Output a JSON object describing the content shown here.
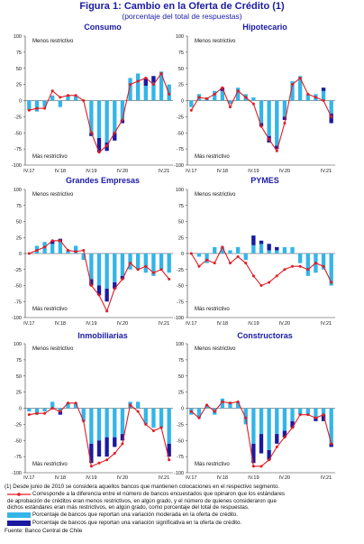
{
  "figure": {
    "title": "Figura 1: Cambio en la Oferta de Crédito (1)",
    "subtitle": "(porcentaje del total de respuestas)"
  },
  "colors": {
    "moderate": "#33b5e8",
    "significant": "#1a1aa0",
    "line": "#e31b23",
    "title": "#1a1aa6"
  },
  "notes": {
    "footnote": "(1) Desde junio de 2010 se considera aquellos bancos que mantienen colocaciones en el respectivo segmento.",
    "line_legend_1": "Corresponde a la diferencia entre el número de bancos encuestados que opinaron que los estándares",
    "line_legend_2": "de aprobación de créditos eran menos restrictivos, en algún grado, y el número de quienes consideraron que",
    "line_legend_3": "dichos estándares eran más restrictivos, en algún grado, como porcentaje del total de respuestas.",
    "moderate_legend": "Porcentaje de bancos que reportan una variación moderada en la oferta de crédito.",
    "significant_legend": "Porcentaje de bancos que reportan una variación significativa en la oferta de crédito.",
    "source": "Fuente: Banco Central de Chile"
  },
  "chart_data": [
    {
      "type": "bar",
      "title": "Consumo",
      "label_top": "Menos restrictivo",
      "label_bottom": "Más restrictivo",
      "ylim": [
        -100,
        100
      ],
      "yticks": [
        "100",
        "75",
        "50",
        "25",
        "0",
        "-25",
        "-50",
        "-75",
        "-100"
      ],
      "xticks": [
        "IV.17",
        "IV.18",
        "IV.19",
        "IV.20",
        "IV.21"
      ],
      "series": [
        {
          "name": "Porcentaje de bancos que reportan una variación moderada en la oferta de crédito.",
          "values": [
            -15,
            -17,
            -10,
            8,
            -10,
            8,
            7,
            0,
            -50,
            -58,
            -65,
            -50,
            -30,
            35,
            42,
            35,
            38,
            45,
            25
          ]
        },
        {
          "name": "Porcentaje de bancos que reportan una variación significativa en la oferta de crédito.",
          "values": [
            0,
            0,
            0,
            0,
            0,
            0,
            0,
            0,
            -5,
            -22,
            -13,
            -12,
            -5,
            0,
            0,
            -12,
            -10,
            0,
            0
          ]
        },
        {
          "name": "Corresponde a la diferencia entre el número de bancos encuestados que opinaron que los estándares de aprobación de créditos eran menos restrictivos, en algún grado, y el número de quienes consideraron que dichos estándares eran más restrictivos, en algún grado, como porcentaje del total de respuestas.",
          "values": [
            -15,
            -12,
            -12,
            15,
            5,
            8,
            8,
            0,
            -50,
            -80,
            -70,
            -50,
            -30,
            25,
            30,
            35,
            25,
            42,
            10
          ]
        }
      ]
    },
    {
      "type": "bar",
      "title": "Hipotecario",
      "label_top": "Menos restrictivo",
      "label_bottom": "Más restrictivo",
      "ylim": [
        -100,
        100
      ],
      "yticks": [
        "100",
        "75",
        "50",
        "25",
        "0",
        "-25",
        "-50",
        "-75",
        "-100"
      ],
      "xticks": [
        "IV.17",
        "IV.18",
        "IV.19",
        "IV.20",
        "IV.21"
      ],
      "series": [
        {
          "name": "Porcentaje de bancos que reportan una variación moderada en la oferta de crédito.",
          "values": [
            -10,
            10,
            5,
            15,
            20,
            -5,
            20,
            10,
            5,
            -35,
            -55,
            -70,
            -25,
            30,
            38,
            10,
            10,
            20,
            -20
          ]
        },
        {
          "name": "Porcentaje de bancos que reportan una variación significativa en la oferta de crédito.",
          "values": [
            0,
            0,
            0,
            0,
            -5,
            0,
            0,
            0,
            0,
            -5,
            -10,
            -5,
            -5,
            0,
            0,
            0,
            0,
            -5,
            -15
          ]
        },
        {
          "name": "Corresponde a la diferencia entre el número de bancos encuestados que opinaron que los estándares de aprobación de créditos eran menos restrictivos, en algún grado, y el número de quienes consideraron que dichos estándares eran más restrictivos, en algún grado, como porcentaje del total de respuestas.",
          "values": [
            -15,
            5,
            3,
            10,
            20,
            -10,
            15,
            5,
            -5,
            -40,
            -60,
            -78,
            -35,
            25,
            35,
            10,
            5,
            0,
            -25
          ]
        }
      ]
    },
    {
      "type": "bar",
      "title": "Grandes Empresas",
      "label_top": "Menos restrictivo",
      "label_bottom": "Más restrictivo",
      "ylim": [
        -100,
        100
      ],
      "yticks": [
        "100",
        "75",
        "50",
        "25",
        "0",
        "-25",
        "-50",
        "-75",
        "-100"
      ],
      "xticks": [
        "IV.17",
        "IV.18",
        "IV.19",
        "IV.20",
        "IV.21"
      ],
      "series": [
        {
          "name": "Porcentaje de bancos que reportan una variación moderada en la oferta de crédito.",
          "values": [
            0,
            12,
            18,
            15,
            18,
            5,
            12,
            -10,
            -40,
            -50,
            -55,
            -45,
            -35,
            -25,
            -25,
            -30,
            -35,
            -25,
            -30
          ]
        },
        {
          "name": "Porcentaje de bancos que reportan una variación significativa en la oferta de crédito.",
          "values": [
            0,
            0,
            0,
            5,
            5,
            0,
            0,
            0,
            -10,
            -15,
            -20,
            -10,
            -5,
            0,
            0,
            0,
            0,
            0,
            0
          ]
        },
        {
          "name": "Corresponde a la diferencia entre el número de bancos encuestados que opinaron que los estándares de aprobación de créditos eran menos restrictivos, en algún grado, y el número de quienes consideraron que dichos estándares eran más restrictivos, en algún grado, como porcentaje del total de respuestas.",
          "values": [
            0,
            5,
            10,
            20,
            20,
            5,
            3,
            5,
            -50,
            -65,
            -90,
            -55,
            -40,
            -15,
            -25,
            -20,
            -30,
            -25,
            -40
          ]
        }
      ]
    },
    {
      "type": "bar",
      "title": "PYMES",
      "label_top": "Menos restrictivo",
      "label_bottom": "Más restrictivo",
      "ylim": [
        -100,
        100
      ],
      "yticks": [
        "100",
        "75",
        "50",
        "25",
        "0",
        "-25",
        "-50",
        "-75",
        "-100"
      ],
      "xticks": [
        "IV.17",
        "IV.18",
        "IV.19",
        "IV.20",
        "IV.21"
      ],
      "series": [
        {
          "name": "Porcentaje de bancos que reportan una variación moderada en la oferta de crédito.",
          "values": [
            0,
            -5,
            -15,
            10,
            10,
            5,
            10,
            -10,
            28,
            20,
            15,
            10,
            10,
            10,
            -15,
            -35,
            -30,
            -25,
            -50
          ]
        },
        {
          "name": "Porcentaje de bancos que reportan una variación significativa en la oferta de crédito.",
          "values": [
            0,
            0,
            0,
            0,
            0,
            0,
            0,
            0,
            -15,
            -5,
            -10,
            -5,
            0,
            0,
            0,
            0,
            0,
            0,
            0
          ]
        },
        {
          "name": "Corresponde a la diferencia entre el número de bancos encuestados que opinaron que los estándares de aprobación de créditos eran menos restrictivos, en algún grado, y el número de quienes consideraron que dichos estándares eran más restrictivos, en algún grado, como porcentaje del total de respuestas.",
          "values": [
            0,
            -20,
            -10,
            -15,
            10,
            -15,
            -5,
            -15,
            -35,
            -50,
            -45,
            -35,
            -25,
            -20,
            -20,
            -25,
            -15,
            -20,
            -45
          ]
        }
      ]
    },
    {
      "type": "bar",
      "title": "Inmobiliarias",
      "label_top": "Menos restrictivo",
      "label_bottom": "Más restrictivo",
      "ylim": [
        -100,
        100
      ],
      "yticks": [
        "100",
        "75",
        "50",
        "25",
        "0",
        "-25",
        "-50",
        "-75",
        "-100"
      ],
      "xticks": [
        "IV.17",
        "IV.18",
        "IV.19",
        "IV.20",
        "IV.21"
      ],
      "series": [
        {
          "name": "Porcentaje de bancos que reportan una variación moderada en la oferta de crédito.",
          "values": [
            -5,
            -10,
            -5,
            10,
            -5,
            8,
            8,
            -20,
            -55,
            -50,
            -45,
            -45,
            -40,
            10,
            10,
            -25,
            -30,
            -30,
            -55
          ]
        },
        {
          "name": "Porcentaje de bancos que reportan una variación significativa en la oferta de crédito.",
          "values": [
            0,
            0,
            0,
            0,
            -5,
            0,
            0,
            0,
            -30,
            -25,
            -30,
            -15,
            -10,
            0,
            0,
            0,
            0,
            0,
            -20
          ]
        },
        {
          "name": "Corresponde a la diferencia entre el número de bancos encuestados que opinaron que los estándares de aprobación de créditos eran menos restrictivos, en algún grado, y el número de quienes consideraron que dichos estándares eran más restrictivos, en algún grado, como porcentaje del total de respuestas.",
          "values": [
            -10,
            -8,
            -8,
            0,
            -5,
            8,
            8,
            -20,
            -90,
            -85,
            -80,
            -70,
            -55,
            5,
            -5,
            -25,
            -35,
            -30,
            -80
          ]
        }
      ]
    },
    {
      "type": "bar",
      "title": "Constructoras",
      "label_top": "Menos restrictivo",
      "label_bottom": "Más restrictivo",
      "ylim": [
        -100,
        100
      ],
      "yticks": [
        "100",
        "75",
        "50",
        "25",
        "0",
        "-25",
        "-50",
        "-75",
        "-100"
      ],
      "xticks": [
        "IV.17",
        "IV.18",
        "IV.19",
        "IV.20",
        "IV.21"
      ],
      "series": [
        {
          "name": "Porcentaje de bancos que reportan una variación moderada en la oferta de crédito.",
          "values": [
            -10,
            -15,
            5,
            -10,
            15,
            10,
            10,
            -25,
            -55,
            -40,
            -65,
            -40,
            -35,
            -20,
            -10,
            -10,
            -15,
            -10,
            -55
          ]
        },
        {
          "name": "Porcentaje de bancos que reportan una variación significativa en la oferta de crédito.",
          "values": [
            0,
            0,
            0,
            0,
            0,
            0,
            0,
            0,
            -30,
            -30,
            -15,
            -15,
            -10,
            -10,
            0,
            0,
            -5,
            -10,
            -5
          ]
        },
        {
          "name": "Corresponde a la diferencia entre el número de bancos encuestados que opinaron que los estándares de aprobación de créditos eran menos restrictivos, en algún grado, y el número de quienes consideraron que dichos estándares eran más restrictivos, en algún grado, como porcentaje del total de respuestas.",
          "values": [
            -5,
            -15,
            5,
            -5,
            10,
            8,
            10,
            -15,
            -90,
            -90,
            -80,
            -60,
            -45,
            -30,
            -10,
            -10,
            -15,
            -10,
            -55
          ]
        }
      ]
    }
  ]
}
